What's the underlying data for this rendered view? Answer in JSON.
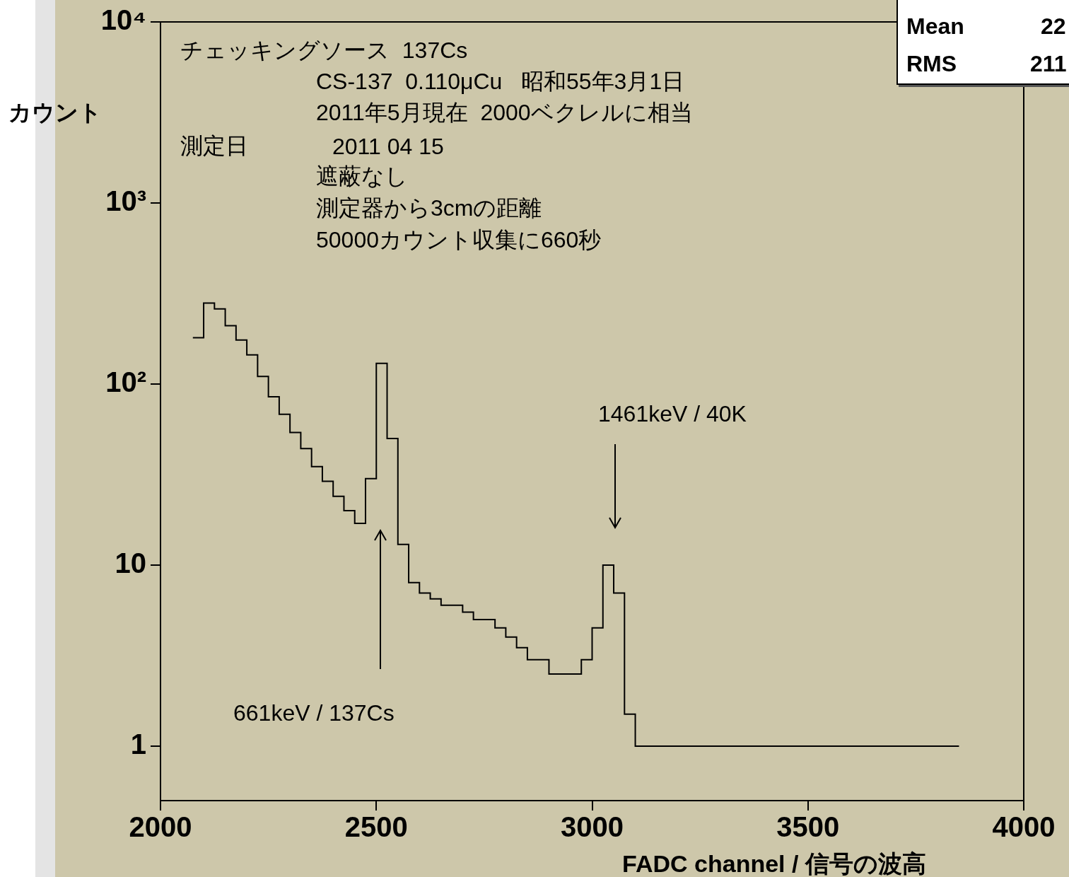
{
  "chart_data": {
    "type": "histogram",
    "xlabel": "FADC channel / 信号の波高",
    "ylabel": "カウント",
    "color": "#000000",
    "bins": [
      2075,
      2100,
      2125,
      2150,
      2175,
      2200,
      2225,
      2250,
      2275,
      2300,
      2325,
      2350,
      2375,
      2400,
      2425,
      2450,
      2475,
      2500,
      2525,
      2550,
      2575,
      2600,
      2625,
      2650,
      2675,
      2700,
      2725,
      2750,
      2775,
      2800,
      2825,
      2850,
      2875,
      2900,
      2925,
      2950,
      2975,
      3000,
      3025,
      3050,
      3075,
      3100,
      3125,
      3150,
      3175,
      3200,
      3225,
      3250,
      3275,
      3300,
      3325,
      3350,
      3375,
      3400,
      3425,
      3450,
      3475,
      3500,
      3525,
      3550,
      3575,
      3600,
      3625,
      3650,
      3675,
      3700,
      3725,
      3750,
      3775,
      3800,
      3825,
      3850
    ],
    "values": [
      180,
      280,
      260,
      210,
      175,
      145,
      110,
      85,
      68,
      54,
      44,
      35,
      29,
      24,
      20,
      17,
      30,
      130,
      50,
      13,
      8,
      7,
      6.5,
      6,
      6,
      5.5,
      5,
      5,
      4.5,
      4,
      3.5,
      3,
      3,
      2.5,
      2.5,
      2.5,
      3,
      4.5,
      10,
      7,
      1.5,
      1,
      1,
      1,
      1,
      1,
      1,
      1,
      1,
      1,
      1,
      1,
      1,
      1,
      1,
      1,
      1,
      1,
      1,
      1,
      1,
      1,
      1,
      1,
      1,
      1,
      1,
      1,
      1,
      1,
      1
    ],
    "xlim": [
      2000,
      4000
    ],
    "xticks": [
      2000,
      2500,
      3000,
      3500,
      4000
    ],
    "ylim": [
      0.5,
      10000
    ],
    "yticks": [
      1,
      10,
      {
        "value": 100,
        "label": "10²"
      },
      {
        "value": 1000,
        "label": "10³"
      },
      {
        "value": 10000,
        "label": "10⁴"
      }
    ],
    "log": "y",
    "grid": false,
    "legend": false,
    "annotations": [
      "チェッキングソース  137Cs",
      "CS-137  0.110μCu   昭和55年3月1日",
      "2011年5月現在  2000ベクレルに相当",
      "測定日",
      "2011 04 15",
      "遮蔽なし",
      "測定器から3cmの距離",
      "50000カウント収集に660秒",
      "Mean",
      "22",
      "RMS",
      "211",
      "661keV / 137Cs",
      "1461keV / 40K"
    ]
  }
}
